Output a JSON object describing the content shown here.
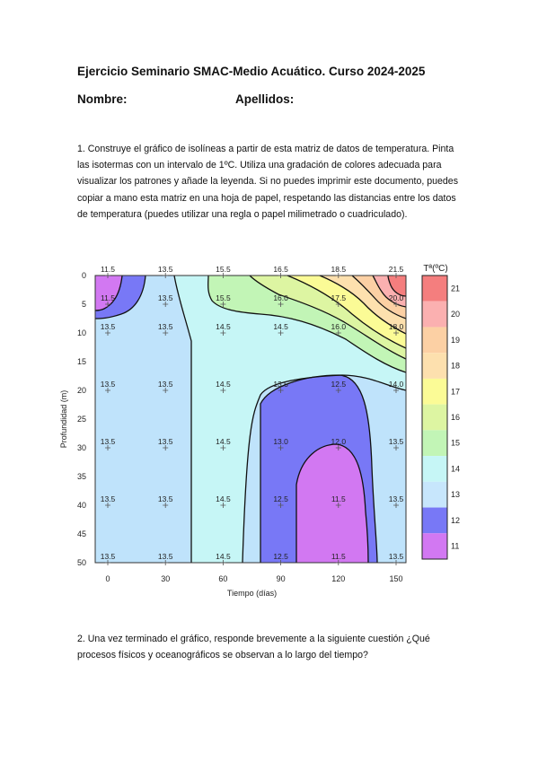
{
  "header": {
    "title": "Ejercicio Seminario SMAC-Medio Acuático. Curso 2024-2025",
    "name_label": "Nombre:",
    "surname_label": "Apellidos:"
  },
  "question1": "1. Construye el gráfico de isolíneas a partir de esta matriz de datos de temperatura. Pinta las isotermas con un intervalo de 1ºC. Utiliza una gradación de colores adecuada para visualizar los patrones y añade la leyenda. Si no puedes imprimir este documento, puedes copiar a mano esta matriz en una hoja de papel, respetando las distancias entre los datos de temperatura (puedes utilizar una regla o papel milimetrado o cuadriculado).",
  "question2": "2. Una vez terminado el gráfico, responde brevemente a la siguiente cuestión ¿Qué procesos físicos y oceanográficos se observan a lo largo del tiempo?",
  "chart_data": {
    "type": "heatmap",
    "xlabel": "Tiempo (días)",
    "ylabel": "Profundidad (m)",
    "legend_title": "Tª(ºC)",
    "x_ticks": [
      "0",
      "30",
      "60",
      "90",
      "120",
      "150"
    ],
    "y_ticks": [
      "0",
      "5",
      "10",
      "15",
      "20",
      "25",
      "30",
      "35",
      "40",
      "45",
      "50"
    ],
    "xlim": [
      0,
      150
    ],
    "ylim": [
      50,
      0
    ],
    "legend_levels": [
      "21",
      "20",
      "19",
      "18",
      "17",
      "16",
      "15",
      "14",
      "13",
      "12",
      "11"
    ],
    "legend_colors": [
      "#f47e7e",
      "#fbb0b0",
      "#fcd0a4",
      "#fde0ae",
      "#fbfb96",
      "#ddf5a2",
      "#c2f5b6",
      "#c6f6f6",
      "#c7e6fc",
      "#7878f6",
      "#d278f2"
    ],
    "data_points": [
      {
        "x": 0,
        "y": 0,
        "label": "11.5"
      },
      {
        "x": 30,
        "y": 0,
        "label": "13.5"
      },
      {
        "x": 60,
        "y": 0,
        "label": "15.5"
      },
      {
        "x": 90,
        "y": 0,
        "label": "16.5"
      },
      {
        "x": 120,
        "y": 0,
        "label": "18.5"
      },
      {
        "x": 150,
        "y": 0,
        "label": "21.5"
      },
      {
        "x": 0,
        "y": 5,
        "label": "11.5"
      },
      {
        "x": 30,
        "y": 5,
        "label": "13.5"
      },
      {
        "x": 60,
        "y": 5,
        "label": "15.5"
      },
      {
        "x": 90,
        "y": 5,
        "label": "16.0"
      },
      {
        "x": 120,
        "y": 5,
        "label": "17.5"
      },
      {
        "x": 150,
        "y": 5,
        "label": "20.0"
      },
      {
        "x": 0,
        "y": 10,
        "label": "13.5"
      },
      {
        "x": 30,
        "y": 10,
        "label": "13.5"
      },
      {
        "x": 60,
        "y": 10,
        "label": "14.5"
      },
      {
        "x": 90,
        "y": 10,
        "label": "14.5"
      },
      {
        "x": 120,
        "y": 10,
        "label": "16.0"
      },
      {
        "x": 150,
        "y": 10,
        "label": "18.0"
      },
      {
        "x": 0,
        "y": 20,
        "label": "13.5"
      },
      {
        "x": 30,
        "y": 20,
        "label": "13.5"
      },
      {
        "x": 60,
        "y": 20,
        "label": "14.5"
      },
      {
        "x": 90,
        "y": 20,
        "label": "13.5"
      },
      {
        "x": 120,
        "y": 20,
        "label": "12.5"
      },
      {
        "x": 150,
        "y": 20,
        "label": "14.0"
      },
      {
        "x": 0,
        "y": 30,
        "label": "13.5"
      },
      {
        "x": 30,
        "y": 30,
        "label": "13.5"
      },
      {
        "x": 60,
        "y": 30,
        "label": "14.5"
      },
      {
        "x": 90,
        "y": 30,
        "label": "13.0"
      },
      {
        "x": 120,
        "y": 30,
        "label": "12.0"
      },
      {
        "x": 150,
        "y": 30,
        "label": "13.5"
      },
      {
        "x": 0,
        "y": 40,
        "label": "13.5"
      },
      {
        "x": 30,
        "y": 40,
        "label": "13.5"
      },
      {
        "x": 60,
        "y": 40,
        "label": "14.5"
      },
      {
        "x": 90,
        "y": 40,
        "label": "12.5"
      },
      {
        "x": 120,
        "y": 40,
        "label": "11.5"
      },
      {
        "x": 150,
        "y": 40,
        "label": "13.5"
      },
      {
        "x": 0,
        "y": 50,
        "label": "13.5"
      },
      {
        "x": 30,
        "y": 50,
        "label": "13.5"
      },
      {
        "x": 60,
        "y": 50,
        "label": "14.5"
      },
      {
        "x": 90,
        "y": 50,
        "label": "12.5"
      },
      {
        "x": 120,
        "y": 50,
        "label": "11.5"
      },
      {
        "x": 150,
        "y": 50,
        "label": "13.5"
      }
    ]
  }
}
